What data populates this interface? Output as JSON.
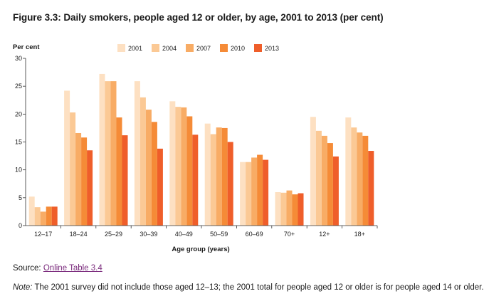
{
  "figure": {
    "title": "Figure 3.3: Daily smokers, people aged 12 or older, by age, 2001 to 2013 (per cent)"
  },
  "source": {
    "label": "Source:",
    "link_text": "Online Table 3.4"
  },
  "note": {
    "lead": "Note:",
    "text": "The 2001 survey did not include those aged 12–13; the 2001 total for people aged 12 or older is for people aged 14 or older."
  },
  "chart_data": {
    "type": "bar",
    "ylabel": "Per cent",
    "xlabel": "Age group (years)",
    "ylim": [
      0,
      30
    ],
    "yticks": [
      0,
      5,
      10,
      15,
      20,
      25,
      30
    ],
    "grid": false,
    "legend_position": "top",
    "categories": [
      "12–17",
      "18–24",
      "25–29",
      "30–39",
      "40–49",
      "50–59",
      "60–69",
      "70+",
      "12+",
      "18+"
    ],
    "series": [
      {
        "name": "2001",
        "color": "#fde0c2",
        "values": [
          5.2,
          24.2,
          27.2,
          25.9,
          22.3,
          18.3,
          11.4,
          6.0,
          19.5,
          19.4
        ]
      },
      {
        "name": "2004",
        "color": "#fbc995",
        "values": [
          3.3,
          20.3,
          25.9,
          23.0,
          21.3,
          16.4,
          11.4,
          5.9,
          17.0,
          17.6
        ]
      },
      {
        "name": "2007",
        "color": "#f8ac65",
        "values": [
          2.5,
          16.6,
          25.9,
          20.8,
          21.2,
          17.6,
          12.2,
          6.3,
          16.1,
          16.7
        ]
      },
      {
        "name": "2010",
        "color": "#f58b37",
        "values": [
          3.4,
          15.8,
          19.4,
          18.6,
          19.6,
          17.5,
          12.7,
          5.6,
          14.8,
          16.1
        ]
      },
      {
        "name": "2013",
        "color": "#ef5e2a",
        "values": [
          3.4,
          13.5,
          16.2,
          13.8,
          16.3,
          15.0,
          11.8,
          5.8,
          12.4,
          13.4
        ]
      }
    ]
  }
}
